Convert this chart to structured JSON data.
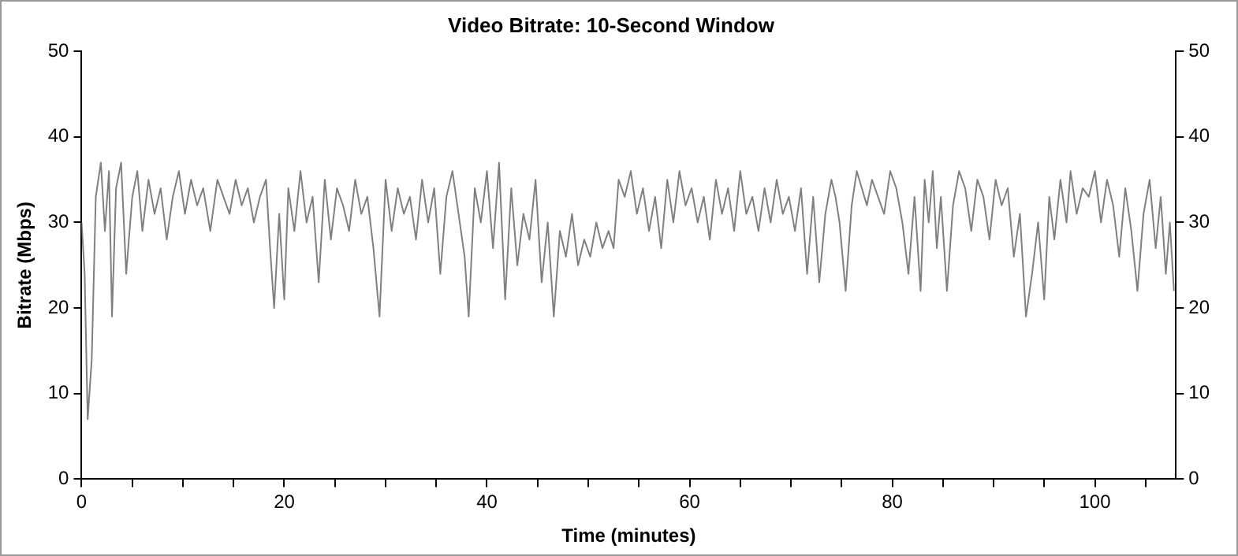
{
  "chart_data": {
    "type": "line",
    "title": "Video Bitrate: 10-Second Window",
    "xlabel": "Time (minutes)",
    "ylabel": "Bitrate (Mbps)",
    "x": [
      0,
      0.3,
      0.6,
      1,
      1.4,
      1.9,
      2.3,
      2.7,
      3,
      3.4,
      3.9,
      4.4,
      5,
      5.5,
      6,
      6.6,
      7.2,
      7.8,
      8.4,
      9,
      9.6,
      10.2,
      10.8,
      11.4,
      12,
      12.7,
      13.4,
      14,
      14.6,
      15.2,
      15.8,
      16.4,
      17,
      17.6,
      18.2,
      18.6,
      19,
      19.5,
      20,
      20.4,
      21,
      21.6,
      22.2,
      22.8,
      23.4,
      24,
      24.6,
      25.2,
      25.8,
      26.4,
      27,
      27.6,
      28.2,
      28.8,
      29.4,
      30,
      30.6,
      31.2,
      31.8,
      32.4,
      33,
      33.6,
      34.2,
      34.8,
      35.4,
      36,
      36.6,
      37.2,
      37.8,
      38.2,
      38.8,
      39.4,
      40,
      40.6,
      41.2,
      41.8,
      42.4,
      43,
      43.6,
      44.2,
      44.8,
      45.4,
      46,
      46.6,
      47.2,
      47.8,
      48.4,
      49,
      49.6,
      50.2,
      50.8,
      51.4,
      52,
      52.5,
      53,
      53.6,
      54.2,
      54.8,
      55.4,
      56,
      56.6,
      57.2,
      57.8,
      58.4,
      59,
      59.6,
      60.2,
      60.8,
      61.4,
      62,
      62.6,
      63.2,
      63.8,
      64.4,
      65,
      65.6,
      66.2,
      66.8,
      67.4,
      68,
      68.6,
      69.2,
      69.8,
      70.4,
      71,
      71.6,
      72.2,
      72.8,
      73.4,
      74,
      74.4,
      74.8,
      75.4,
      76,
      76.5,
      77,
      77.5,
      78,
      78.6,
      79.2,
      79.8,
      80.4,
      81,
      81.6,
      82.2,
      82.8,
      83.2,
      83.6,
      84,
      84.4,
      84.8,
      85.4,
      86,
      86.6,
      87.2,
      87.8,
      88.4,
      89,
      89.6,
      90.2,
      90.8,
      91.4,
      92,
      92.6,
      93.2,
      93.8,
      94.4,
      95,
      95.5,
      96,
      96.6,
      97.2,
      97.6,
      98.2,
      98.8,
      99.4,
      100,
      100.6,
      101.2,
      101.8,
      102.4,
      103,
      103.6,
      104.2,
      104.8,
      105.4,
      106,
      106.5,
      107,
      107.4,
      107.8
    ],
    "series": [
      {
        "color": "#808080",
        "values": [
          30,
          24,
          7,
          14,
          33,
          37,
          29,
          36,
          19,
          34,
          37,
          24,
          33,
          36,
          29,
          35,
          31,
          34,
          28,
          33,
          36,
          31,
          35,
          32,
          34,
          29,
          35,
          33,
          31,
          35,
          32,
          34,
          30,
          33,
          35,
          27,
          20,
          31,
          21,
          34,
          29,
          36,
          30,
          33,
          23,
          35,
          28,
          34,
          32,
          29,
          35,
          31,
          33,
          27,
          19,
          35,
          29,
          34,
          31,
          33,
          28,
          35,
          30,
          34,
          24,
          33,
          36,
          31,
          26,
          19,
          34,
          30,
          36,
          27,
          37,
          21,
          34,
          25,
          31,
          28,
          35,
          23,
          30,
          19,
          29,
          26,
          31,
          25,
          28,
          26,
          30,
          27,
          29,
          27,
          35,
          33,
          36,
          31,
          34,
          29,
          33,
          27,
          35,
          30,
          36,
          32,
          34,
          30,
          33,
          28,
          35,
          31,
          34,
          29,
          36,
          31,
          33,
          29,
          34,
          30,
          35,
          31,
          33,
          29,
          34,
          24,
          33,
          23,
          31,
          35,
          33,
          30,
          22,
          32,
          36,
          34,
          32,
          35,
          33,
          31,
          36,
          34,
          30,
          24,
          33,
          22,
          35,
          30,
          36,
          27,
          33,
          22,
          32,
          36,
          34,
          29,
          35,
          33,
          28,
          35,
          32,
          34,
          26,
          31,
          19,
          24,
          30,
          21,
          33,
          28,
          35,
          30,
          36,
          31,
          34,
          33,
          36,
          30,
          35,
          32,
          26,
          34,
          29,
          22,
          31,
          35,
          27,
          33,
          24,
          30,
          22
        ]
      }
    ],
    "xlim": [
      0,
      108
    ],
    "xticks": [
      0,
      {
        "value": 5,
        "label": null
      },
      {
        "value": 10,
        "label": null
      },
      {
        "value": 15,
        "label": null
      },
      20,
      {
        "value": 25,
        "label": null
      },
      {
        "value": 30,
        "label": null
      },
      {
        "value": 35,
        "label": null
      },
      40,
      {
        "value": 45,
        "label": null
      },
      {
        "value": 50,
        "label": null
      },
      {
        "value": 55,
        "label": null
      },
      60,
      {
        "value": 65,
        "label": null
      },
      {
        "value": 70,
        "label": null
      },
      {
        "value": 75,
        "label": null
      },
      80,
      {
        "value": 85,
        "label": null
      },
      {
        "value": 90,
        "label": null
      },
      {
        "value": 95,
        "label": null
      },
      100,
      {
        "value": 105,
        "label": null
      }
    ],
    "ylim": [
      0,
      50
    ],
    "yticks": [
      0,
      10,
      20,
      30,
      40,
      50
    ],
    "y2lim": [
      0,
      50
    ],
    "y2ticks": [
      0,
      10,
      20,
      30,
      40,
      50
    ],
    "grid": false,
    "legend": false,
    "marker": "none",
    "line_style": "solid"
  }
}
